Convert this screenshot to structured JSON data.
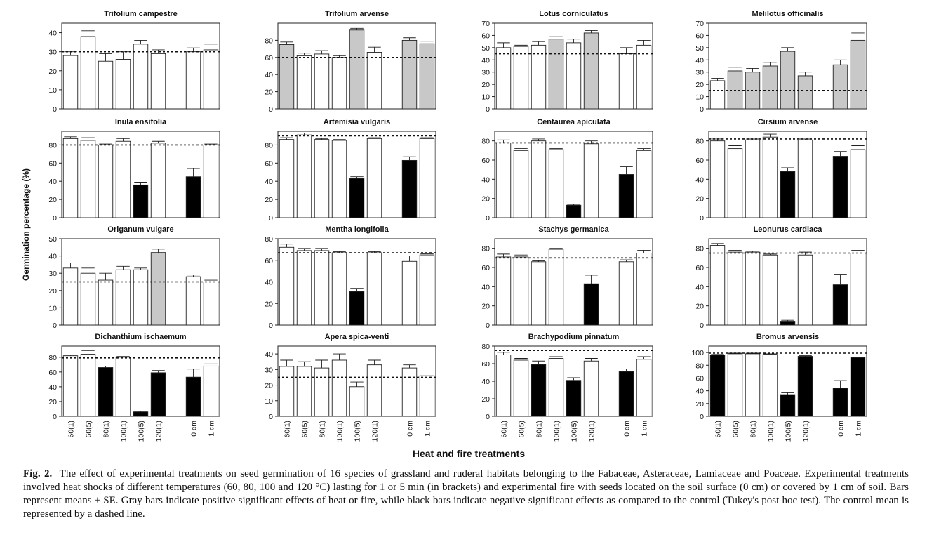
{
  "figure": {
    "y_axis_label": "Germination percentage (%)",
    "x_axis_label": "Heat and fire treatments"
  },
  "caption": {
    "label": "Fig. 2.",
    "text": "The effect of experimental treatments on seed germination of 16 species of grassland and ruderal habitats belonging to the Fabaceae, Asteraceae, Lamiaceae and Poaceae. Experimental treatments involved heat shocks of different temperatures (60, 80, 100 and 120 °C) lasting for 1 or 5 min (in brackets) and experimental fire with seeds located on the soil surface (0 cm) or covered by 1 cm of soil. Bars represent means ± SE. Gray bars indicate positive significant effects of heat or fire, while black bars indicate negative significant effects as compared to the control (Tukey's post hoc test). The control mean is represented by a dashed line."
  },
  "colors": {
    "white": "#ffffff",
    "gray": "#c8c8c8",
    "black": "#000000"
  },
  "chart_data": [
    {
      "type": "bar",
      "title": "Trifolium campestre",
      "categories": [
        "60(1)",
        "60(5)",
        "80(1)",
        "100(1)",
        "100(5)",
        "120(1)",
        "0 cm",
        "1 cm"
      ],
      "values": [
        28,
        38,
        25,
        26,
        34,
        29,
        30,
        31
      ],
      "errors": [
        2,
        3,
        4,
        4,
        2,
        2,
        2,
        3
      ],
      "fills": [
        "white",
        "white",
        "white",
        "white",
        "white",
        "white",
        "white",
        "white"
      ],
      "control": 30,
      "ylim": [
        0,
        45
      ],
      "yticks": [
        0,
        10,
        20,
        30,
        40
      ]
    },
    {
      "type": "bar",
      "title": "Trifolium arvense",
      "categories": [
        "60(1)",
        "60(5)",
        "80(1)",
        "100(1)",
        "100(5)",
        "120(1)",
        "0 cm",
        "1 cm"
      ],
      "values": [
        75,
        62,
        64,
        60,
        92,
        66,
        80,
        76
      ],
      "errors": [
        3,
        3,
        4,
        2,
        2,
        6,
        3,
        3
      ],
      "fills": [
        "gray",
        "white",
        "white",
        "white",
        "gray",
        "white",
        "gray",
        "gray"
      ],
      "control": 60,
      "ylim": [
        0,
        100
      ],
      "yticks": [
        0,
        20,
        40,
        60,
        80
      ]
    },
    {
      "type": "bar",
      "title": "Lotus corniculatus",
      "categories": [
        "60(1)",
        "60(5)",
        "80(1)",
        "100(1)",
        "100(5)",
        "120(1)",
        "0 cm",
        "1 cm"
      ],
      "values": [
        50,
        51,
        52,
        57,
        54,
        62,
        45,
        52
      ],
      "errors": [
        4,
        1,
        3,
        2,
        3,
        2,
        5,
        4
      ],
      "fills": [
        "white",
        "white",
        "white",
        "gray",
        "white",
        "gray",
        "white",
        "white"
      ],
      "control": 45,
      "ylim": [
        0,
        70
      ],
      "yticks": [
        0,
        10,
        20,
        30,
        40,
        50,
        60,
        70
      ]
    },
    {
      "type": "bar",
      "title": "Melilotus officinalis",
      "categories": [
        "60(1)",
        "60(5)",
        "80(1)",
        "100(1)",
        "100(5)",
        "120(1)",
        "0 cm",
        "1 cm"
      ],
      "values": [
        23,
        31,
        30,
        35,
        47,
        27,
        36,
        56
      ],
      "errors": [
        2,
        3,
        3,
        3,
        3,
        3,
        4,
        6
      ],
      "fills": [
        "white",
        "gray",
        "gray",
        "gray",
        "gray",
        "gray",
        "gray",
        "gray"
      ],
      "control": 15,
      "ylim": [
        0,
        70
      ],
      "yticks": [
        0,
        10,
        20,
        30,
        40,
        50,
        60,
        70
      ]
    },
    {
      "type": "bar",
      "title": "Inula ensifolia",
      "categories": [
        "60(1)",
        "60(5)",
        "80(1)",
        "100(1)",
        "100(5)",
        "120(1)",
        "0 cm",
        "1 cm"
      ],
      "values": [
        87,
        85,
        80,
        84,
        36,
        82,
        45,
        80
      ],
      "errors": [
        2,
        3,
        1,
        3,
        3,
        2,
        9,
        1
      ],
      "fills": [
        "white",
        "white",
        "white",
        "white",
        "black",
        "white",
        "black",
        "white"
      ],
      "control": 80,
      "ylim": [
        0,
        95
      ],
      "yticks": [
        0,
        20,
        40,
        60,
        80
      ]
    },
    {
      "type": "bar",
      "title": "Artemisia vulgaris",
      "categories": [
        "60(1)",
        "60(5)",
        "80(1)",
        "100(1)",
        "100(5)",
        "120(1)",
        "0 cm",
        "1 cm"
      ],
      "values": [
        86,
        91,
        86,
        85,
        43,
        87,
        63,
        87
      ],
      "errors": [
        2,
        2,
        1,
        1,
        2,
        1,
        4,
        1
      ],
      "fills": [
        "white",
        "white",
        "white",
        "white",
        "black",
        "white",
        "black",
        "white"
      ],
      "control": 90,
      "ylim": [
        0,
        95
      ],
      "yticks": [
        0,
        20,
        40,
        60,
        80
      ]
    },
    {
      "type": "bar",
      "title": "Centaurea apiculata",
      "categories": [
        "60(1)",
        "60(5)",
        "80(1)",
        "100(1)",
        "100(5)",
        "120(1)",
        "0 cm",
        "1 cm"
      ],
      "values": [
        78,
        70,
        80,
        71,
        13,
        77,
        45,
        70
      ],
      "errors": [
        3,
        2,
        2,
        1,
        1,
        3,
        8,
        2
      ],
      "fills": [
        "white",
        "white",
        "white",
        "white",
        "black",
        "white",
        "black",
        "white"
      ],
      "control": 78,
      "ylim": [
        0,
        90
      ],
      "yticks": [
        0,
        20,
        40,
        60,
        80
      ]
    },
    {
      "type": "bar",
      "title": "Cirsium arvense",
      "categories": [
        "60(1)",
        "60(5)",
        "80(1)",
        "100(1)",
        "100(5)",
        "120(1)",
        "0 cm",
        "1 cm"
      ],
      "values": [
        80,
        72,
        81,
        84,
        48,
        81,
        64,
        71
      ],
      "errors": [
        2,
        3,
        1,
        3,
        4,
        1,
        5,
        4
      ],
      "fills": [
        "white",
        "white",
        "white",
        "white",
        "black",
        "white",
        "black",
        "white"
      ],
      "control": 82,
      "ylim": [
        0,
        90
      ],
      "yticks": [
        0,
        20,
        40,
        60,
        80
      ]
    },
    {
      "type": "bar",
      "title": "Origanum vulgare",
      "categories": [
        "60(1)",
        "60(5)",
        "80(1)",
        "100(1)",
        "100(5)",
        "120(1)",
        "0 cm",
        "1 cm"
      ],
      "values": [
        33,
        30,
        26,
        32,
        32,
        42,
        28,
        25
      ],
      "errors": [
        3,
        3,
        4,
        2,
        1,
        2,
        1,
        1
      ],
      "fills": [
        "white",
        "white",
        "white",
        "white",
        "white",
        "gray",
        "white",
        "white"
      ],
      "control": 25,
      "ylim": [
        0,
        50
      ],
      "yticks": [
        0,
        10,
        20,
        30,
        40,
        50
      ]
    },
    {
      "type": "bar",
      "title": "Mentha longifolia",
      "categories": [
        "60(1)",
        "60(5)",
        "80(1)",
        "100(1)",
        "100(5)",
        "120(1)",
        "0 cm",
        "1 cm"
      ],
      "values": [
        72,
        69,
        69,
        67,
        31,
        67,
        59,
        65
      ],
      "errors": [
        3,
        2,
        2,
        1,
        3,
        1,
        5,
        1
      ],
      "fills": [
        "white",
        "white",
        "white",
        "white",
        "black",
        "white",
        "white",
        "white"
      ],
      "control": 67,
      "ylim": [
        0,
        80
      ],
      "yticks": [
        0,
        20,
        40,
        60,
        80
      ]
    },
    {
      "type": "bar",
      "title": "Stachys germanica",
      "categories": [
        "60(1)",
        "60(5)",
        "80(1)",
        "100(1)",
        "100(5)",
        "120(1)",
        "0 cm",
        "1 cm"
      ],
      "values": [
        71,
        71,
        66,
        79,
        0,
        43,
        66,
        75
      ],
      "errors": [
        3,
        2,
        1,
        1,
        0,
        9,
        2,
        3
      ],
      "fills": [
        "white",
        "white",
        "white",
        "white",
        "black",
        "black",
        "white",
        "white"
      ],
      "control": 70,
      "ylim": [
        0,
        90
      ],
      "yticks": [
        0,
        20,
        40,
        60,
        80
      ]
    },
    {
      "type": "bar",
      "title": "Leonurus cardiaca",
      "categories": [
        "60(1)",
        "60(5)",
        "80(1)",
        "100(1)",
        "100(5)",
        "120(1)",
        "0 cm",
        "1 cm"
      ],
      "values": [
        83,
        76,
        76,
        73,
        4,
        73,
        42,
        75
      ],
      "errors": [
        2,
        2,
        1,
        1,
        1,
        3,
        11,
        3
      ],
      "fills": [
        "white",
        "white",
        "white",
        "white",
        "black",
        "white",
        "black",
        "white"
      ],
      "control": 75,
      "ylim": [
        0,
        90
      ],
      "yticks": [
        0,
        20,
        40,
        60,
        80
      ]
    },
    {
      "type": "bar",
      "title": "Dichanthium ischaemum",
      "categories": [
        "60(1)",
        "60(5)",
        "80(1)",
        "100(1)",
        "100(5)",
        "120(1)",
        "0 cm",
        "1 cm"
      ],
      "values": [
        82,
        84,
        66,
        80,
        6,
        59,
        53,
        68
      ],
      "errors": [
        1,
        5,
        2,
        1,
        1,
        3,
        11,
        3
      ],
      "fills": [
        "white",
        "white",
        "black",
        "white",
        "black",
        "black",
        "black",
        "white"
      ],
      "control": 79,
      "ylim": [
        0,
        95
      ],
      "yticks": [
        0,
        20,
        40,
        60,
        80
      ]
    },
    {
      "type": "bar",
      "title": "Apera spica-venti",
      "categories": [
        "60(1)",
        "60(5)",
        "80(1)",
        "100(1)",
        "100(5)",
        "120(1)",
        "0 cm",
        "1 cm"
      ],
      "values": [
        32,
        32,
        31,
        36,
        19,
        33,
        31,
        26
      ],
      "errors": [
        4,
        3,
        5,
        4,
        3,
        3,
        2,
        3
      ],
      "fills": [
        "white",
        "white",
        "white",
        "white",
        "white",
        "white",
        "white",
        "white"
      ],
      "control": 25,
      "ylim": [
        0,
        45
      ],
      "yticks": [
        0,
        10,
        20,
        30,
        40
      ]
    },
    {
      "type": "bar",
      "title": "Brachypodium pinnatum",
      "categories": [
        "60(1)",
        "60(5)",
        "80(1)",
        "100(1)",
        "100(5)",
        "120(1)",
        "0 cm",
        "1 cm"
      ],
      "values": [
        70,
        64,
        59,
        66,
        41,
        63,
        51,
        65
      ],
      "errors": [
        3,
        2,
        4,
        2,
        3,
        3,
        3,
        3
      ],
      "fills": [
        "white",
        "white",
        "black",
        "white",
        "black",
        "white",
        "black",
        "white"
      ],
      "control": 75,
      "ylim": [
        0,
        80
      ],
      "yticks": [
        0,
        20,
        40,
        60,
        80
      ]
    },
    {
      "type": "bar",
      "title": "Bromus arvensis",
      "categories": [
        "60(1)",
        "60(5)",
        "80(1)",
        "100(1)",
        "100(5)",
        "120(1)",
        "0 cm",
        "1 cm"
      ],
      "values": [
        96,
        98,
        98,
        97,
        34,
        94,
        44,
        92
      ],
      "errors": [
        1,
        1,
        1,
        1,
        3,
        1,
        12,
        1
      ],
      "fills": [
        "black",
        "white",
        "white",
        "white",
        "black",
        "black",
        "black",
        "black"
      ],
      "control": 99,
      "ylim": [
        0,
        110
      ],
      "yticks": [
        0,
        20,
        40,
        60,
        80,
        100
      ]
    }
  ]
}
